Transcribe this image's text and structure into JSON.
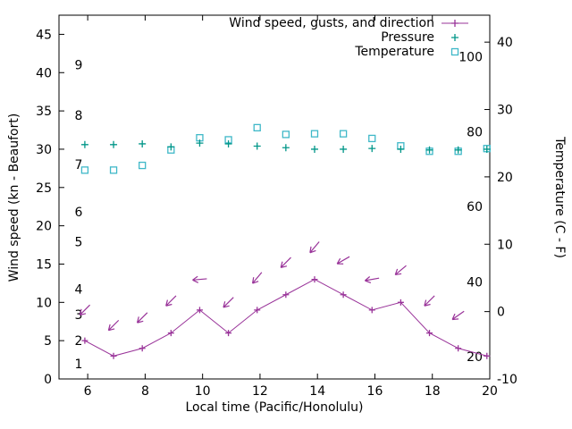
{
  "chart_data": {
    "type": "line",
    "title": "",
    "xlabel": "Local time (Pacific/Honolulu)",
    "ylabel_left": "Wind speed (kn - Beaufort)",
    "ylabel_right": "Temperature (C - F)",
    "xlim": [
      5,
      20
    ],
    "x_ticks": [
      6,
      8,
      10,
      12,
      14,
      16,
      18,
      20
    ],
    "ylim_left": [
      0,
      47.5
    ],
    "y_ticks_left": [
      0,
      5,
      10,
      15,
      20,
      25,
      30,
      35,
      40,
      45
    ],
    "ylim_right": [
      -10,
      44
    ],
    "y_ticks_right": [
      -10,
      0,
      10,
      20,
      30,
      40
    ],
    "grid": false,
    "legend_position": "top-right",
    "beaufort_labels": [
      {
        "label": "1",
        "kn": 2
      },
      {
        "label": "2",
        "kn": 5
      },
      {
        "label": "3",
        "kn": 8.4
      },
      {
        "label": "4",
        "kn": 11.7
      },
      {
        "label": "5",
        "kn": 17.9
      },
      {
        "label": "6",
        "kn": 21.8
      },
      {
        "label": "7",
        "kn": 28
      },
      {
        "label": "8",
        "kn": 34.4
      },
      {
        "label": "9",
        "kn": 41
      }
    ],
    "fahrenheit_labels": [
      {
        "label": "20",
        "c": -6.7
      },
      {
        "label": "40",
        "c": 4.4
      },
      {
        "label": "60",
        "c": 15.6
      },
      {
        "label": "80",
        "c": 26.7
      },
      {
        "label": "100",
        "c": 37.8
      }
    ],
    "x": [
      5.9,
      6.9,
      7.9,
      8.9,
      9.9,
      10.9,
      11.9,
      12.9,
      13.9,
      14.9,
      15.9,
      16.9,
      17.9,
      18.9,
      19.9
    ],
    "series": [
      {
        "name": "Wind speed, gusts, and direction",
        "color": "#993399",
        "marker": "plus",
        "line": true,
        "axis": "left",
        "values": [
          5,
          3,
          4,
          6,
          9,
          6,
          9,
          11,
          13,
          11,
          9,
          10,
          6,
          4,
          3
        ]
      },
      {
        "name": "Pressure",
        "color": "#009688",
        "marker": "plus",
        "line": false,
        "axis": "left",
        "values": [
          30.6,
          30.6,
          30.7,
          30.3,
          30.8,
          30.7,
          30.4,
          30.2,
          30.0,
          30.0,
          30.1,
          30.0,
          29.9,
          29.9,
          30.0
        ]
      },
      {
        "name": "Temperature",
        "color": "#3fb8c8",
        "marker": "square",
        "line": false,
        "axis": "right",
        "values": [
          21,
          21,
          21.7,
          24,
          25.8,
          25.5,
          27.3,
          26.3,
          26.4,
          26.4,
          25.7,
          24.6,
          23.8,
          23.8,
          24.2
        ]
      }
    ],
    "wind_arrows": {
      "color": "#993399",
      "x": [
        5.9,
        6.9,
        7.9,
        8.9,
        9.9,
        10.9,
        11.9,
        12.9,
        13.9,
        14.9,
        15.9,
        16.9,
        17.9,
        18.9
      ],
      "kn": [
        9,
        7,
        8,
        10.2,
        13,
        10,
        13.2,
        15.2,
        17.2,
        15.5,
        13,
        14.2,
        10.2,
        8.3
      ],
      "rotation_deg": [
        135,
        135,
        135,
        135,
        175,
        135,
        130,
        135,
        130,
        150,
        170,
        140,
        135,
        145
      ]
    }
  }
}
